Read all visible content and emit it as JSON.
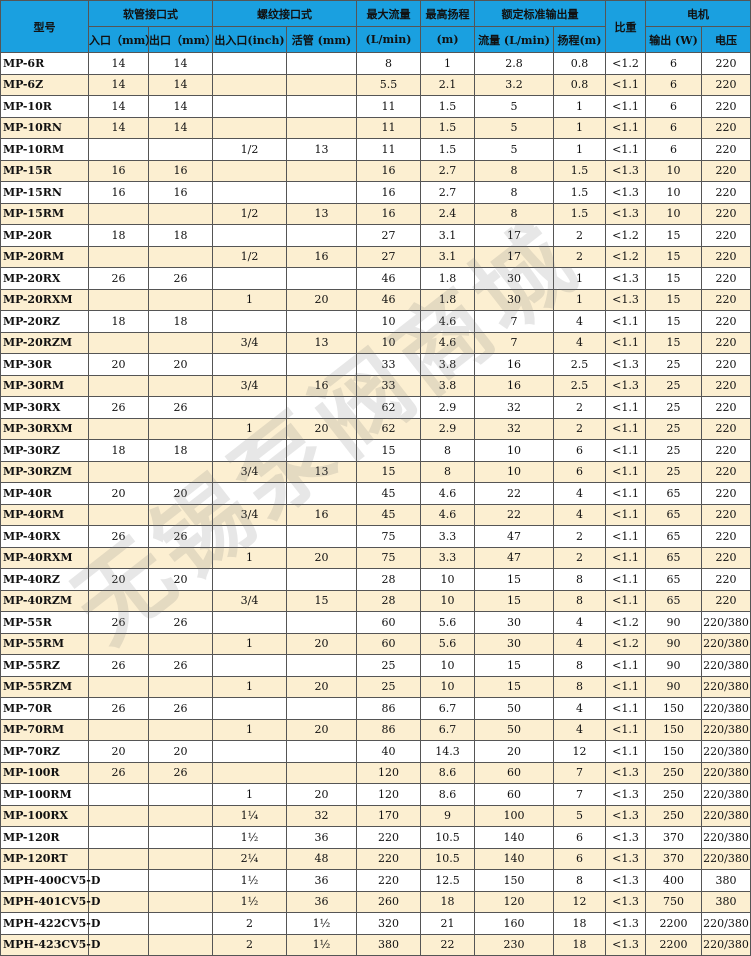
{
  "header": {
    "model": "型号",
    "hose": "软管接口式",
    "thread": "螺纹接口式",
    "max_flow": "最大流量",
    "max_head": "最高扬程",
    "rated": "额定标准输出量",
    "sg": "比重",
    "motor": "电机",
    "hose_in": "入口（mm）",
    "hose_out": "出口（mm）",
    "thread_io": "出入口(inch)",
    "thread_hose": "活管 (mm)",
    "flow_unit": "(L/min)",
    "head_unit": "(m)",
    "rated_flow": "流量 (L/min)",
    "rated_head": "扬程(m)",
    "power": "输出 (W)",
    "voltage": "电压"
  },
  "watermark": "无锡泵阀商城",
  "rows": [
    [
      "MP-6R",
      "14",
      "14",
      "",
      "",
      "8",
      "1",
      "2.8",
      "0.8",
      "<1.2",
      "6",
      "220"
    ],
    [
      "MP-6Z",
      "14",
      "14",
      "",
      "",
      "5.5",
      "2.1",
      "3.2",
      "0.8",
      "<1.1",
      "6",
      "220"
    ],
    [
      "MP-10R",
      "14",
      "14",
      "",
      "",
      "11",
      "1.5",
      "5",
      "1",
      "<1.1",
      "6",
      "220"
    ],
    [
      "MP-10RN",
      "14",
      "14",
      "",
      "",
      "11",
      "1.5",
      "5",
      "1",
      "<1.1",
      "6",
      "220"
    ],
    [
      "MP-10RM",
      "",
      "",
      "1/2",
      "13",
      "11",
      "1.5",
      "5",
      "1",
      "<1.1",
      "6",
      "220"
    ],
    [
      "MP-15R",
      "16",
      "16",
      "",
      "",
      "16",
      "2.7",
      "8",
      "1.5",
      "<1.3",
      "10",
      "220"
    ],
    [
      "MP-15RN",
      "16",
      "16",
      "",
      "",
      "16",
      "2.7",
      "8",
      "1.5",
      "<1.3",
      "10",
      "220"
    ],
    [
      "MP-15RM",
      "",
      "",
      "1/2",
      "13",
      "16",
      "2.4",
      "8",
      "1.5",
      "<1.3",
      "10",
      "220"
    ],
    [
      "MP-20R",
      "18",
      "18",
      "",
      "",
      "27",
      "3.1",
      "17",
      "2",
      "<1.2",
      "15",
      "220"
    ],
    [
      "MP-20RM",
      "",
      "",
      "1/2",
      "16",
      "27",
      "3.1",
      "17",
      "2",
      "<1.2",
      "15",
      "220"
    ],
    [
      "MP-20RX",
      "26",
      "26",
      "",
      "",
      "46",
      "1.8",
      "30",
      "1",
      "<1.3",
      "15",
      "220"
    ],
    [
      "MP-20RXM",
      "",
      "",
      "1",
      "20",
      "46",
      "1.8",
      "30",
      "1",
      "<1.3",
      "15",
      "220"
    ],
    [
      "MP-20RZ",
      "18",
      "18",
      "",
      "",
      "10",
      "4.6",
      "7",
      "4",
      "<1.1",
      "15",
      "220"
    ],
    [
      "MP-20RZM",
      "",
      "",
      "3/4",
      "13",
      "10",
      "4.6",
      "7",
      "4",
      "<1.1",
      "15",
      "220"
    ],
    [
      "MP-30R",
      "20",
      "20",
      "",
      "",
      "33",
      "3.8",
      "16",
      "2.5",
      "<1.3",
      "25",
      "220"
    ],
    [
      "MP-30RM",
      "",
      "",
      "3/4",
      "16",
      "33",
      "3.8",
      "16",
      "2.5",
      "<1.3",
      "25",
      "220"
    ],
    [
      "MP-30RX",
      "26",
      "26",
      "",
      "",
      "62",
      "2.9",
      "32",
      "2",
      "<1.1",
      "25",
      "220"
    ],
    [
      "MP-30RXM",
      "",
      "",
      "1",
      "20",
      "62",
      "2.9",
      "32",
      "2",
      "<1.1",
      "25",
      "220"
    ],
    [
      "MP-30RZ",
      "18",
      "18",
      "",
      "",
      "15",
      "8",
      "10",
      "6",
      "<1.1",
      "25",
      "220"
    ],
    [
      "MP-30RZM",
      "",
      "",
      "3/4",
      "13",
      "15",
      "8",
      "10",
      "6",
      "<1.1",
      "25",
      "220"
    ],
    [
      "MP-40R",
      "20",
      "20",
      "",
      "",
      "45",
      "4.6",
      "22",
      "4",
      "<1.1",
      "65",
      "220"
    ],
    [
      "MP-40RM",
      "",
      "",
      "3/4",
      "16",
      "45",
      "4.6",
      "22",
      "4",
      "<1.1",
      "65",
      "220"
    ],
    [
      "MP-40RX",
      "26",
      "26",
      "",
      "",
      "75",
      "3.3",
      "47",
      "2",
      "<1.1",
      "65",
      "220"
    ],
    [
      "MP-40RXM",
      "",
      "",
      "1",
      "20",
      "75",
      "3.3",
      "47",
      "2",
      "<1.1",
      "65",
      "220"
    ],
    [
      "MP-40RZ",
      "20",
      "20",
      "",
      "",
      "28",
      "10",
      "15",
      "8",
      "<1.1",
      "65",
      "220"
    ],
    [
      "MP-40RZM",
      "",
      "",
      "3/4",
      "15",
      "28",
      "10",
      "15",
      "8",
      "<1.1",
      "65",
      "220"
    ],
    [
      "MP-55R",
      "26",
      "26",
      "",
      "",
      "60",
      "5.6",
      "30",
      "4",
      "<1.2",
      "90",
      "220/380"
    ],
    [
      "MP-55RM",
      "",
      "",
      "1",
      "20",
      "60",
      "5.6",
      "30",
      "4",
      "<1.2",
      "90",
      "220/380"
    ],
    [
      "MP-55RZ",
      "26",
      "26",
      "",
      "",
      "25",
      "10",
      "15",
      "8",
      "<1.1",
      "90",
      "220/380"
    ],
    [
      "MP-55RZM",
      "",
      "",
      "1",
      "20",
      "25",
      "10",
      "15",
      "8",
      "<1.1",
      "90",
      "220/380"
    ],
    [
      "MP-70R",
      "26",
      "26",
      "",
      "",
      "86",
      "6.7",
      "50",
      "4",
      "<1.1",
      "150",
      "220/380"
    ],
    [
      "MP-70RM",
      "",
      "",
      "1",
      "20",
      "86",
      "6.7",
      "50",
      "4",
      "<1.1",
      "150",
      "220/380"
    ],
    [
      "MP-70RZ",
      "20",
      "20",
      "",
      "",
      "40",
      "14.3",
      "20",
      "12",
      "<1.1",
      "150",
      "220/380"
    ],
    [
      "MP-100R",
      "26",
      "26",
      "",
      "",
      "120",
      "8.6",
      "60",
      "7",
      "<1.3",
      "250",
      "220/380"
    ],
    [
      "MP-100RM",
      "",
      "",
      "1",
      "20",
      "120",
      "8.6",
      "60",
      "7",
      "<1.3",
      "250",
      "220/380"
    ],
    [
      "MP-100RX",
      "",
      "",
      "1¼",
      "32",
      "170",
      "9",
      "100",
      "5",
      "<1.3",
      "250",
      "220/380"
    ],
    [
      "MP-120R",
      "",
      "",
      "1½",
      "36",
      "220",
      "10.5",
      "140",
      "6",
      "<1.3",
      "370",
      "220/380"
    ],
    [
      "MP-120RT",
      "",
      "",
      "2¼",
      "48",
      "220",
      "10.5",
      "140",
      "6",
      "<1.3",
      "370",
      "220/380"
    ],
    [
      "MPH-400CV5-D",
      "",
      "",
      "1½",
      "36",
      "220",
      "12.5",
      "150",
      "8",
      "<1.3",
      "400",
      "380"
    ],
    [
      "MPH-401CV5-D",
      "",
      "",
      "1½",
      "36",
      "260",
      "18",
      "120",
      "12",
      "<1.3",
      "750",
      "380"
    ],
    [
      "MPH-422CV5-D",
      "",
      "",
      "2",
      "1½",
      "320",
      "21",
      "160",
      "18",
      "<1.3",
      "2200",
      "220/380"
    ],
    [
      "MPH-423CV5-D",
      "",
      "",
      "2",
      "1½",
      "380",
      "22",
      "230",
      "18",
      "<1.3",
      "2200",
      "220/380"
    ]
  ]
}
